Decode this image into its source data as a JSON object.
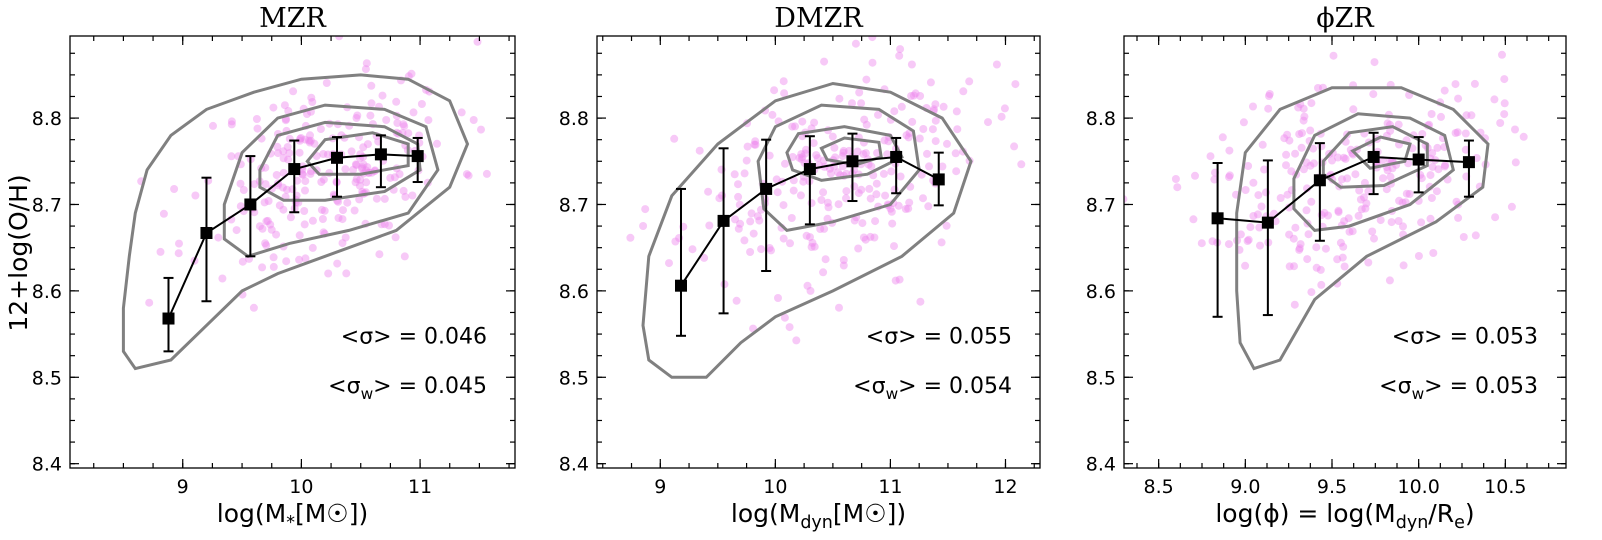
{
  "figure": {
    "ylabel": "12+log(O/H)",
    "colors": {
      "scatter": "#ee88ee",
      "contour": "#808080",
      "median": "#000000"
    }
  },
  "chart_data": [
    {
      "type": "scatter",
      "title": "MZR",
      "xlabel": "log(M*[M☉])",
      "ylabel": "12+log(O/H)",
      "xlim": [
        8.05,
        11.8
      ],
      "ylim": [
        8.395,
        8.895
      ],
      "xticks": [
        9,
        10,
        11
      ],
      "xtick_labels": [
        "9",
        "10",
        "11"
      ],
      "yticks": [
        8.4,
        8.5,
        8.6,
        8.7,
        8.8
      ],
      "ytick_labels": [
        "8.4",
        "8.5",
        "8.6",
        "8.7",
        "8.8"
      ],
      "scatter_cloud": {
        "center": [
          10.2,
          8.74
        ],
        "spread": [
          0.55,
          0.055
        ],
        "tilt": 0.04,
        "n": 260,
        "seed": 11
      },
      "contours": [
        [
          [
            8.5,
            8.58
          ],
          [
            8.55,
            8.64
          ],
          [
            8.6,
            8.69
          ],
          [
            8.7,
            8.74
          ],
          [
            8.9,
            8.78
          ],
          [
            9.2,
            8.81
          ],
          [
            9.6,
            8.83
          ],
          [
            10.0,
            8.845
          ],
          [
            10.5,
            8.85
          ],
          [
            10.9,
            8.845
          ],
          [
            11.25,
            8.82
          ],
          [
            11.4,
            8.77
          ],
          [
            11.25,
            8.72
          ],
          [
            10.8,
            8.67
          ],
          [
            10.2,
            8.64
          ],
          [
            9.8,
            8.62
          ],
          [
            9.5,
            8.6
          ],
          [
            9.2,
            8.56
          ],
          [
            8.9,
            8.52
          ],
          [
            8.6,
            8.51
          ],
          [
            8.5,
            8.53
          ],
          [
            8.5,
            8.58
          ]
        ],
        [
          [
            9.35,
            8.7
          ],
          [
            9.5,
            8.76
          ],
          [
            9.8,
            8.8
          ],
          [
            10.2,
            8.815
          ],
          [
            10.7,
            8.81
          ],
          [
            11.05,
            8.79
          ],
          [
            11.15,
            8.74
          ],
          [
            10.9,
            8.69
          ],
          [
            10.4,
            8.67
          ],
          [
            9.9,
            8.655
          ],
          [
            9.55,
            8.64
          ],
          [
            9.35,
            8.66
          ],
          [
            9.35,
            8.7
          ]
        ],
        [
          [
            9.65,
            8.74
          ],
          [
            9.8,
            8.78
          ],
          [
            10.2,
            8.795
          ],
          [
            10.7,
            8.79
          ],
          [
            10.98,
            8.77
          ],
          [
            11.0,
            8.74
          ],
          [
            10.7,
            8.715
          ],
          [
            10.2,
            8.705
          ],
          [
            9.85,
            8.705
          ],
          [
            9.65,
            8.72
          ],
          [
            9.65,
            8.74
          ]
        ],
        [
          [
            10.05,
            8.75
          ],
          [
            10.2,
            8.775
          ],
          [
            10.6,
            8.783
          ],
          [
            10.9,
            8.77
          ],
          [
            10.9,
            8.745
          ],
          [
            10.5,
            8.735
          ],
          [
            10.15,
            8.735
          ],
          [
            10.05,
            8.75
          ]
        ]
      ],
      "median_x": [
        8.88,
        9.2,
        9.57,
        9.94,
        10.3,
        10.67,
        10.98
      ],
      "median_y": [
        8.568,
        8.667,
        8.7,
        8.741,
        8.754,
        8.758,
        8.756
      ],
      "yerr_low": [
        0.038,
        0.079,
        0.06,
        0.05,
        0.045,
        0.038,
        0.03
      ],
      "yerr_high": [
        0.047,
        0.064,
        0.056,
        0.033,
        0.024,
        0.022,
        0.021
      ],
      "annotations": [
        "<σ> = 0.046",
        "<σw> = 0.045"
      ]
    },
    {
      "type": "scatter",
      "title": "DMZR",
      "xlabel": "log(Mdyn[M☉])",
      "ylabel": "",
      "xlim": [
        8.45,
        12.3
      ],
      "ylim": [
        8.395,
        8.895
      ],
      "xticks": [
        9,
        10,
        11,
        12
      ],
      "xtick_labels": [
        "9",
        "10",
        "11",
        "12"
      ],
      "yticks": [
        8.4,
        8.5,
        8.6,
        8.7,
        8.8
      ],
      "ytick_labels": [
        "8.4",
        "8.5",
        "8.6",
        "8.7",
        "8.8"
      ],
      "scatter_cloud": {
        "center": [
          10.5,
          8.73
        ],
        "spread": [
          0.65,
          0.06
        ],
        "tilt": 0.03,
        "n": 260,
        "seed": 23
      },
      "contours": [
        [
          [
            8.85,
            8.56
          ],
          [
            8.9,
            8.64
          ],
          [
            9.1,
            8.71
          ],
          [
            9.5,
            8.77
          ],
          [
            10.0,
            8.82
          ],
          [
            10.5,
            8.84
          ],
          [
            11.0,
            8.83
          ],
          [
            11.45,
            8.8
          ],
          [
            11.7,
            8.75
          ],
          [
            11.55,
            8.69
          ],
          [
            11.1,
            8.64
          ],
          [
            10.5,
            8.6
          ],
          [
            10.0,
            8.57
          ],
          [
            9.7,
            8.54
          ],
          [
            9.4,
            8.5
          ],
          [
            9.1,
            8.5
          ],
          [
            8.9,
            8.52
          ],
          [
            8.85,
            8.56
          ]
        ],
        [
          [
            9.85,
            8.75
          ],
          [
            10.0,
            8.79
          ],
          [
            10.4,
            8.815
          ],
          [
            10.9,
            8.81
          ],
          [
            11.2,
            8.785
          ],
          [
            11.25,
            8.74
          ],
          [
            11.0,
            8.7
          ],
          [
            10.5,
            8.68
          ],
          [
            10.1,
            8.67
          ],
          [
            9.9,
            8.695
          ],
          [
            9.85,
            8.75
          ]
        ],
        [
          [
            10.1,
            8.76
          ],
          [
            10.2,
            8.782
          ],
          [
            10.6,
            8.79
          ],
          [
            11.0,
            8.78
          ],
          [
            11.1,
            8.755
          ],
          [
            10.8,
            8.735
          ],
          [
            10.4,
            8.728
          ],
          [
            10.15,
            8.74
          ],
          [
            10.1,
            8.76
          ]
        ],
        [
          [
            10.4,
            8.765
          ],
          [
            10.6,
            8.777
          ],
          [
            10.9,
            8.772
          ],
          [
            10.92,
            8.755
          ],
          [
            10.7,
            8.746
          ],
          [
            10.45,
            8.752
          ],
          [
            10.4,
            8.765
          ]
        ]
      ],
      "median_x": [
        9.18,
        9.55,
        9.92,
        10.3,
        10.67,
        11.05,
        11.42
      ],
      "median_y": [
        8.606,
        8.681,
        8.718,
        8.741,
        8.75,
        8.755,
        8.729
      ],
      "yerr_low": [
        0.058,
        0.107,
        0.095,
        0.064,
        0.046,
        0.042,
        0.03
      ],
      "yerr_high": [
        0.112,
        0.084,
        0.057,
        0.038,
        0.032,
        0.022,
        0.031
      ],
      "annotations": [
        "<σ> = 0.055",
        "<σw> = 0.054"
      ]
    },
    {
      "type": "scatter",
      "title": "ϕZR",
      "xlabel": "log(ϕ) = log(Mdyn/Re)",
      "ylabel": "",
      "xlim": [
        8.3,
        10.85
      ],
      "ylim": [
        8.395,
        8.895
      ],
      "xticks": [
        8.5,
        9.0,
        9.5,
        10.0,
        10.5
      ],
      "xtick_labels": [
        "8.5",
        "9.0",
        "9.5",
        "10.0",
        "10.5"
      ],
      "yticks": [
        8.4,
        8.5,
        8.6,
        8.7,
        8.8
      ],
      "ytick_labels": [
        "8.4",
        "8.5",
        "8.6",
        "8.7",
        "8.8"
      ],
      "scatter_cloud": {
        "center": [
          9.6,
          8.735
        ],
        "spread": [
          0.42,
          0.058
        ],
        "tilt": 0.04,
        "n": 260,
        "seed": 37
      },
      "contours": [
        [
          [
            8.95,
            8.6
          ],
          [
            8.95,
            8.69
          ],
          [
            9.0,
            8.76
          ],
          [
            9.2,
            8.81
          ],
          [
            9.5,
            8.835
          ],
          [
            9.9,
            8.835
          ],
          [
            10.2,
            8.81
          ],
          [
            10.4,
            8.77
          ],
          [
            10.37,
            8.72
          ],
          [
            10.1,
            8.68
          ],
          [
            9.7,
            8.64
          ],
          [
            9.4,
            8.59
          ],
          [
            9.2,
            8.52
          ],
          [
            9.05,
            8.51
          ],
          [
            8.97,
            8.54
          ],
          [
            8.95,
            8.6
          ]
        ],
        [
          [
            9.28,
            8.73
          ],
          [
            9.4,
            8.78
          ],
          [
            9.65,
            8.805
          ],
          [
            9.95,
            8.8
          ],
          [
            10.15,
            8.78
          ],
          [
            10.2,
            8.74
          ],
          [
            9.95,
            8.7
          ],
          [
            9.6,
            8.675
          ],
          [
            9.4,
            8.67
          ],
          [
            9.28,
            8.695
          ],
          [
            9.28,
            8.73
          ]
        ],
        [
          [
            9.45,
            8.75
          ],
          [
            9.6,
            8.783
          ],
          [
            9.85,
            8.79
          ],
          [
            10.05,
            8.77
          ],
          [
            10.05,
            8.745
          ],
          [
            9.8,
            8.722
          ],
          [
            9.55,
            8.72
          ],
          [
            9.45,
            8.735
          ],
          [
            9.45,
            8.75
          ]
        ],
        [
          [
            9.62,
            8.762
          ],
          [
            9.78,
            8.778
          ],
          [
            9.95,
            8.77
          ],
          [
            9.92,
            8.75
          ],
          [
            9.72,
            8.742
          ],
          [
            9.62,
            8.762
          ]
        ]
      ],
      "median_x": [
        8.84,
        9.13,
        9.43,
        9.74,
        10.0,
        10.29
      ],
      "median_y": [
        8.684,
        8.679,
        8.728,
        8.755,
        8.752,
        8.749
      ],
      "yerr_low": [
        0.114,
        0.107,
        0.07,
        0.043,
        0.038,
        0.04
      ],
      "yerr_high": [
        0.064,
        0.072,
        0.043,
        0.028,
        0.026,
        0.025
      ],
      "annotations": [
        "<σ> = 0.053",
        "<σw> = 0.053"
      ]
    }
  ]
}
